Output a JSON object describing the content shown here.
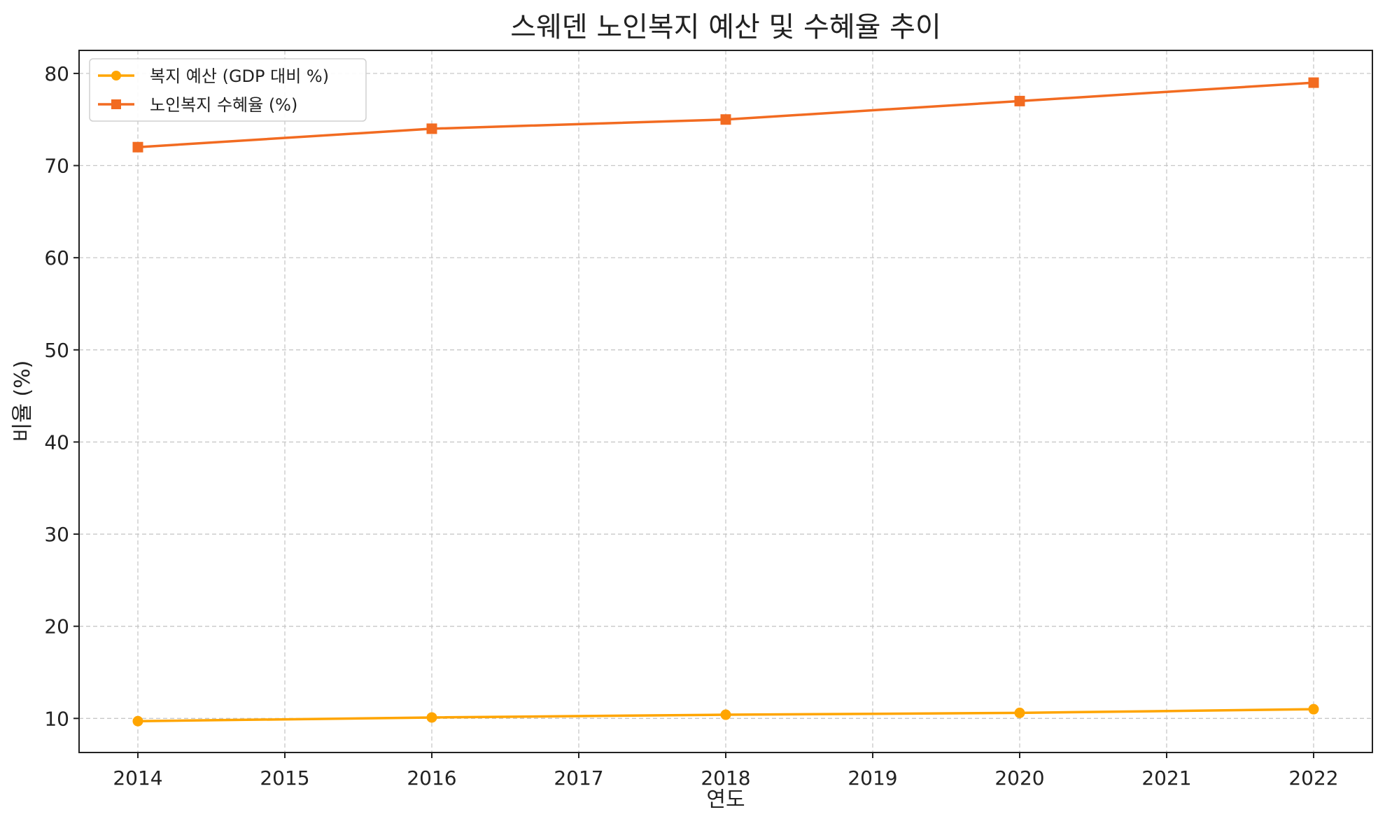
{
  "chart_data": {
    "type": "line",
    "title": "스웨덴 노인복지 예산 및 수혜율 추이",
    "xlabel": "연도",
    "ylabel": "비율 (%)",
    "x_ticks": [
      2014,
      2015,
      2016,
      2017,
      2018,
      2019,
      2020,
      2021,
      2022
    ],
    "xlim": [
      2013.6,
      2022.4
    ],
    "ylim": [
      6.3,
      82.5
    ],
    "y_ticks": [
      10,
      20,
      30,
      40,
      50,
      60,
      70,
      80
    ],
    "grid": true,
    "legend_position": "top-left",
    "series": [
      {
        "name": "복지 예산 (GDP 대비 %)",
        "marker": "circle",
        "color": "#FFA500",
        "points": [
          [
            2014,
            9.7
          ],
          [
            2016,
            10.1
          ],
          [
            2018,
            10.4
          ],
          [
            2020,
            10.6
          ],
          [
            2022,
            11.0
          ]
        ]
      },
      {
        "name": "노인복지 수혜율 (%)",
        "marker": "square",
        "color": "#F26B21",
        "points": [
          [
            2014,
            72
          ],
          [
            2016,
            74
          ],
          [
            2018,
            75
          ],
          [
            2020,
            77
          ],
          [
            2022,
            79
          ]
        ]
      }
    ]
  }
}
